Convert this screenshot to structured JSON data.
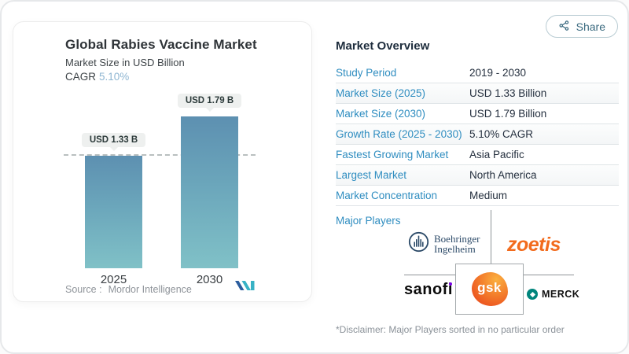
{
  "page": {
    "share_label": "Share",
    "share_icon": "share-nodes"
  },
  "left_card": {
    "title": "Global Rabies Vaccine Market",
    "subtitle": "Market Size in USD Billion",
    "cagr_label": "CAGR",
    "cagr_value": "5.10%",
    "source_prefix": "Source :",
    "source_name": "Mordor Intelligence",
    "logo": "mordor-intelligence-logo"
  },
  "chart_data": {
    "type": "bar",
    "categories": [
      "2025",
      "2030"
    ],
    "values": [
      1.33,
      1.79
    ],
    "value_labels": [
      "USD 1.33 B",
      "USD 1.79 B"
    ],
    "title": "Global Rabies Vaccine Market",
    "ylabel": "Market Size in USD Billion",
    "ylim": [
      0,
      1.79
    ],
    "reference_line": 1.33,
    "grid": false,
    "legend": false,
    "bar_gradient": [
      "#5d90b1",
      "#80c1c7"
    ]
  },
  "overview": {
    "heading": "Market Overview",
    "rows": [
      {
        "label": "Study Period",
        "value": "2019 - 2030"
      },
      {
        "label": "Market Size (2025)",
        "value": "USD 1.33 Billion"
      },
      {
        "label": "Market Size (2030)",
        "value": "USD 1.79 Billion"
      },
      {
        "label": "Growth Rate (2025 - 2030)",
        "value": "5.10% CAGR"
      },
      {
        "label": "Fastest Growing Market",
        "value": "Asia Pacific"
      },
      {
        "label": "Largest Market",
        "value": "North America"
      },
      {
        "label": "Market Concentration",
        "value": "Medium"
      }
    ],
    "major_players_label": "Major Players",
    "disclaimer": "*Disclaimer: Major Players sorted in no particular order"
  },
  "logos": {
    "boehringer_line1": "Boehringer",
    "boehringer_line2": "Ingelheim",
    "zoetis": "zoetis",
    "sanofi": "sanofi",
    "gsk": "gsk",
    "merck": "MERCK"
  },
  "colors": {
    "accent_blue": "#2f8dc0",
    "bar_top": "#5d90b1",
    "bar_bottom": "#80c1c7",
    "zoetis_orange": "#f26b1d",
    "gsk_orange": "#ed5a22",
    "merck_teal": "#00857c",
    "boehringer_navy": "#2c4a68",
    "sanofi_purple": "#7a00e6"
  }
}
